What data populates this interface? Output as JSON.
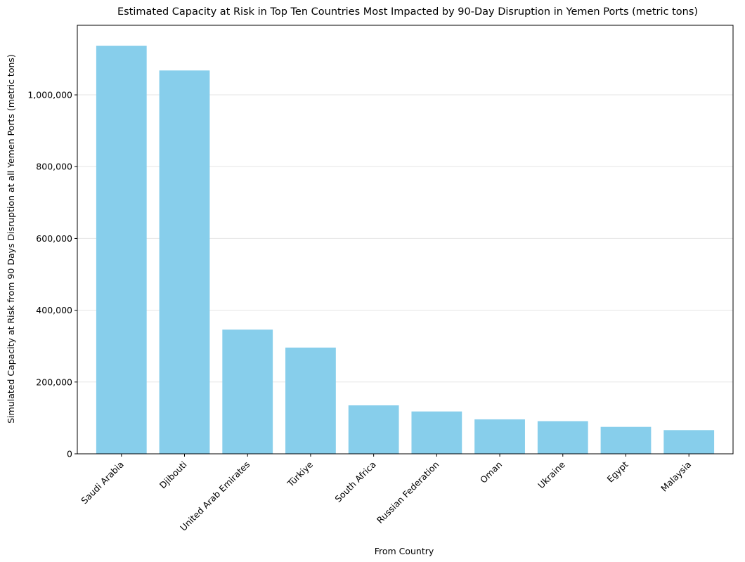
{
  "chart_data": {
    "type": "bar",
    "title": "Estimated Capacity at Risk in Top Ten Countries Most Impacted by 90-Day Disruption in Yemen Ports (metric tons)",
    "xlabel": "From Country",
    "ylabel": "Simulated Capacity at Risk from 90 Days Disruption at all Yemen Ports (metric tons)",
    "categories": [
      "Saudi Arabia",
      "Djibouti",
      "United Arab Emirates",
      "Türkiye",
      "South Africa",
      "Russian Federation",
      "Oman",
      "Ukraine",
      "Egypt",
      "Malaysia"
    ],
    "values": [
      1137000,
      1068000,
      346000,
      296000,
      135000,
      118000,
      96000,
      91000,
      75000,
      66000
    ],
    "ylim": [
      0,
      1137000
    ],
    "yticks": [
      0,
      200000,
      400000,
      600000,
      800000,
      1000000
    ],
    "ytick_labels": [
      "0",
      "200,000",
      "400,000",
      "600,000",
      "800,000",
      "1,000,000"
    ],
    "bar_color": "#87CEEB",
    "grid": "horizontal, light",
    "legend": "none"
  }
}
